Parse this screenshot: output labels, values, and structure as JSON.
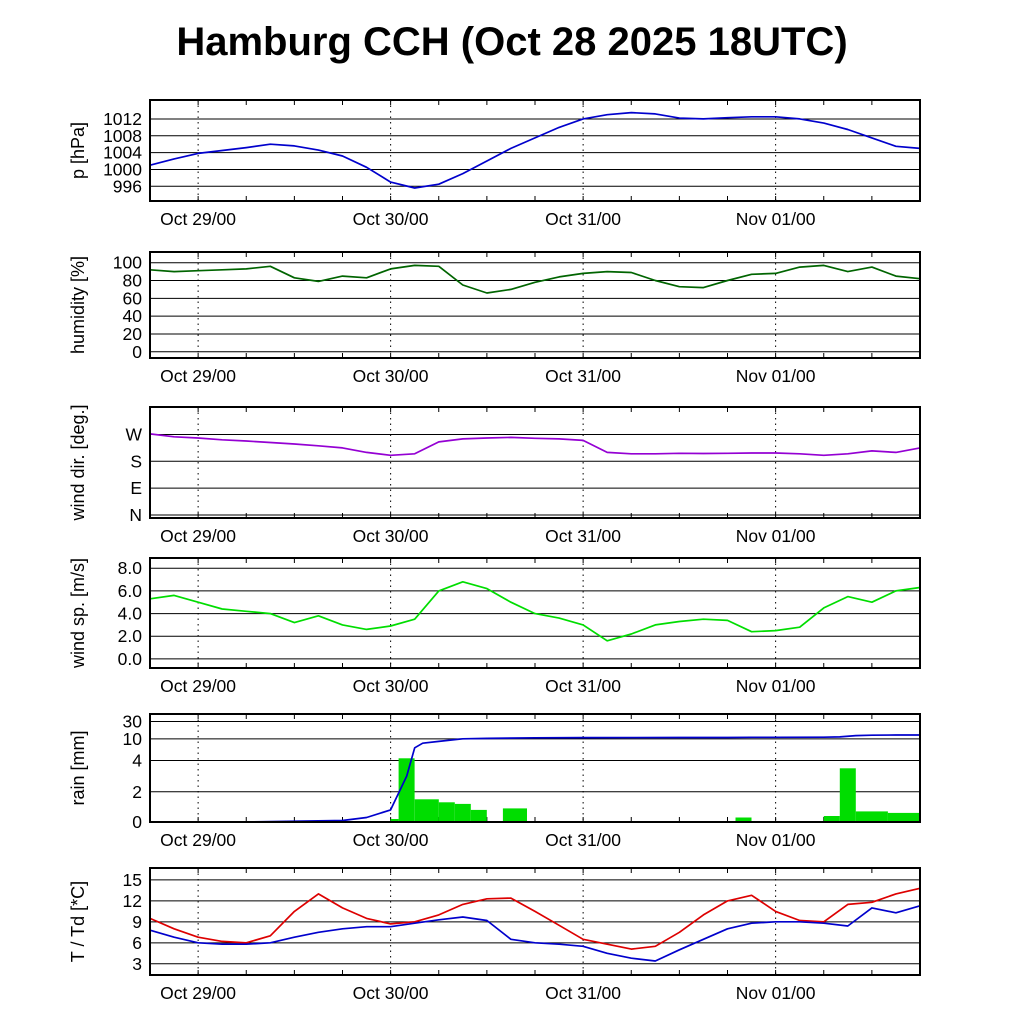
{
  "title": "Hamburg CCH (Oct 28 2025 18UTC)",
  "chart_data": {
    "type": "line",
    "description_types": [
      "line",
      "line",
      "line",
      "line",
      "bar+line",
      "line"
    ],
    "x_axis": {
      "labels": [
        "Oct 29/00",
        "Oct 30/00",
        "Oct 31/00",
        "Nov 01/00"
      ],
      "label_hours": [
        6,
        30,
        54,
        78
      ],
      "range_hours": [
        0,
        96
      ],
      "minor_tick_step_hours": 6,
      "grid_style": "dashed-vertical"
    },
    "sample_hours": [
      0,
      3,
      6,
      9,
      12,
      15,
      18,
      21,
      24,
      27,
      30,
      33,
      36,
      39,
      42,
      45,
      48,
      51,
      54,
      57,
      60,
      63,
      66,
      69,
      72,
      75,
      78,
      81,
      84,
      87,
      90,
      93,
      96
    ],
    "panels": [
      {
        "id": "pressure",
        "ylabel": "p [hPa]",
        "ylim": [
          992.5,
          1016.5
        ],
        "yticks": [
          996,
          1000,
          1004,
          1008,
          1012
        ],
        "ytick_labels": [
          "996",
          "1000",
          "1004",
          "1008",
          "1012"
        ],
        "series": [
          {
            "name": "pressure",
            "color": "#0000cc",
            "y": [
              1001,
              1002.5,
              1003.8,
              1004.5,
              1005.2,
              1006,
              1005.6,
              1004.6,
              1003.2,
              1000.5,
              997,
              995.6,
              996.5,
              999,
              1002,
              1005,
              1007.5,
              1010,
              1012,
              1013,
              1013.5,
              1013.2,
              1012.2,
              1012,
              1012.3,
              1012.5,
              1012.5,
              1012,
              1011,
              1009.5,
              1007.5,
              1005.5,
              1005
            ]
          }
        ]
      },
      {
        "id": "humidity",
        "ylabel": "humidity [%]",
        "ylim": [
          -7,
          112
        ],
        "yticks": [
          0,
          20,
          40,
          60,
          80,
          100
        ],
        "ytick_labels": [
          "0",
          "20",
          "40",
          "60",
          "80",
          "100"
        ],
        "series": [
          {
            "name": "relative humidity",
            "color": "#006400",
            "y": [
              92,
              90,
              91,
              92,
              93,
              96,
              83,
              79,
              85,
              83,
              93,
              97,
              96,
              75,
              66,
              70,
              78,
              84,
              88,
              90,
              89,
              80,
              73,
              72,
              80,
              87,
              88,
              95,
              97,
              90,
              95,
              85,
              82
            ]
          }
        ]
      },
      {
        "id": "wind-direction",
        "ylabel": "wind dir. [deg.]",
        "ylim": [
          -10,
          362
        ],
        "yticks": [
          0,
          90,
          180,
          270
        ],
        "ytick_labels": [
          "N",
          "E",
          "S",
          "W"
        ],
        "series": [
          {
            "name": "wind direction",
            "color": "#9400d3",
            "y": [
              272,
              262,
              258,
              252,
              248,
              243,
              238,
              232,
              225,
              210,
              200,
              205,
              245,
              255,
              258,
              260,
              257,
              255,
              250,
              210,
              205,
              205,
              207,
              206,
              207,
              208,
              208,
              205,
              200,
              205,
              215,
              210,
              225
            ]
          }
        ]
      },
      {
        "id": "wind-speed",
        "ylabel": "wind sp. [m/s]",
        "ylim": [
          -0.8,
          8.9
        ],
        "yticks": [
          0,
          2,
          4,
          6,
          8
        ],
        "ytick_labels": [
          "0.0",
          "2.0",
          "4.0",
          "6.0",
          "8.0"
        ],
        "series": [
          {
            "name": "wind speed",
            "color": "#00dd00",
            "y": [
              5.3,
              5.6,
              5.0,
              4.4,
              4.2,
              4.0,
              3.2,
              3.8,
              3.0,
              2.6,
              2.9,
              3.5,
              6.0,
              6.8,
              6.2,
              5.0,
              4.0,
              3.6,
              3.0,
              1.6,
              2.2,
              3.0,
              3.3,
              3.5,
              3.4,
              2.4,
              2.5,
              2.8,
              4.5,
              5.5,
              5.0,
              6.0,
              6.3
            ]
          }
        ]
      },
      {
        "id": "rain",
        "ylabel": "rain [mm]",
        "yscale": {
          "breaks": [
            0,
            2,
            4,
            10,
            30,
            60
          ],
          "pos": [
            0,
            0.28,
            0.57,
            0.77,
            0.93,
            1.0
          ]
        },
        "yticks": [
          0,
          2,
          4,
          10,
          30
        ],
        "ytick_labels": [
          "0",
          "2",
          "4",
          "10",
          "30"
        ],
        "bars": {
          "name": "hourly precipitation",
          "color": "#00dd00",
          "intervals": [
            {
              "start": 30,
              "width": 1,
              "value": 0.2
            },
            {
              "start": 31,
              "width": 2,
              "value": 4.6
            },
            {
              "start": 33,
              "width": 3,
              "value": 1.5
            },
            {
              "start": 36,
              "width": 2,
              "value": 1.3
            },
            {
              "start": 38,
              "width": 2,
              "value": 1.2
            },
            {
              "start": 40,
              "width": 2,
              "value": 0.8
            },
            {
              "start": 44,
              "width": 3,
              "value": 0.9
            },
            {
              "start": 73,
              "width": 2,
              "value": 0.3
            },
            {
              "start": 84,
              "width": 2,
              "value": 0.4
            },
            {
              "start": 86,
              "width": 2,
              "value": 3.5
            },
            {
              "start": 88,
              "width": 4,
              "value": 0.7
            },
            {
              "start": 92,
              "width": 4,
              "value": 0.6
            }
          ]
        },
        "series": [
          {
            "name": "accumulated precipitation",
            "color": "#0000cc",
            "x": [
              0,
              12,
              24,
              27,
              30,
              32,
              33,
              34,
              36,
              39,
              42,
              48,
              54,
              66,
              72,
              75,
              78,
              84,
              86,
              88,
              90,
              93,
              96
            ],
            "y": [
              0,
              0,
              0.1,
              0.3,
              0.8,
              3,
              7.5,
              8.8,
              9.3,
              10,
              10.5,
              11.2,
              11.4,
              11.5,
              11.5,
              11.8,
              11.8,
              11.9,
              12.2,
              13.8,
              14.2,
              14.4,
              14.5
            ]
          }
        ]
      },
      {
        "id": "temperature",
        "ylabel": "T / Td [*C]",
        "ylim": [
          1.4,
          16.7
        ],
        "yticks": [
          3,
          6,
          9,
          12,
          15
        ],
        "ytick_labels": [
          "3",
          "6",
          "9",
          "12",
          "15"
        ],
        "series": [
          {
            "name": "temperature T",
            "color": "#dd0000",
            "y": [
              9.5,
              8,
              6.8,
              6.2,
              6.0,
              7.0,
              10.5,
              13.0,
              11.0,
              9.5,
              8.7,
              9.0,
              10.0,
              11.5,
              12.3,
              12.4,
              10.5,
              8.5,
              6.5,
              5.8,
              5.1,
              5.5,
              7.5,
              10.0,
              12.0,
              12.8,
              10.5,
              9.2,
              9.0,
              11.5,
              11.8,
              13.0,
              13.8
            ]
          },
          {
            "name": "dewpoint Td",
            "color": "#0000cc",
            "y": [
              7.8,
              6.8,
              6.0,
              5.8,
              5.8,
              6.0,
              6.8,
              7.5,
              8.0,
              8.3,
              8.3,
              8.8,
              9.3,
              9.7,
              9.2,
              6.5,
              6.0,
              5.8,
              5.5,
              4.5,
              3.8,
              3.4,
              5.0,
              6.5,
              8.0,
              8.8,
              9.0,
              9.0,
              8.8,
              8.4,
              11.0,
              10.3,
              11.3
            ]
          }
        ]
      }
    ]
  }
}
